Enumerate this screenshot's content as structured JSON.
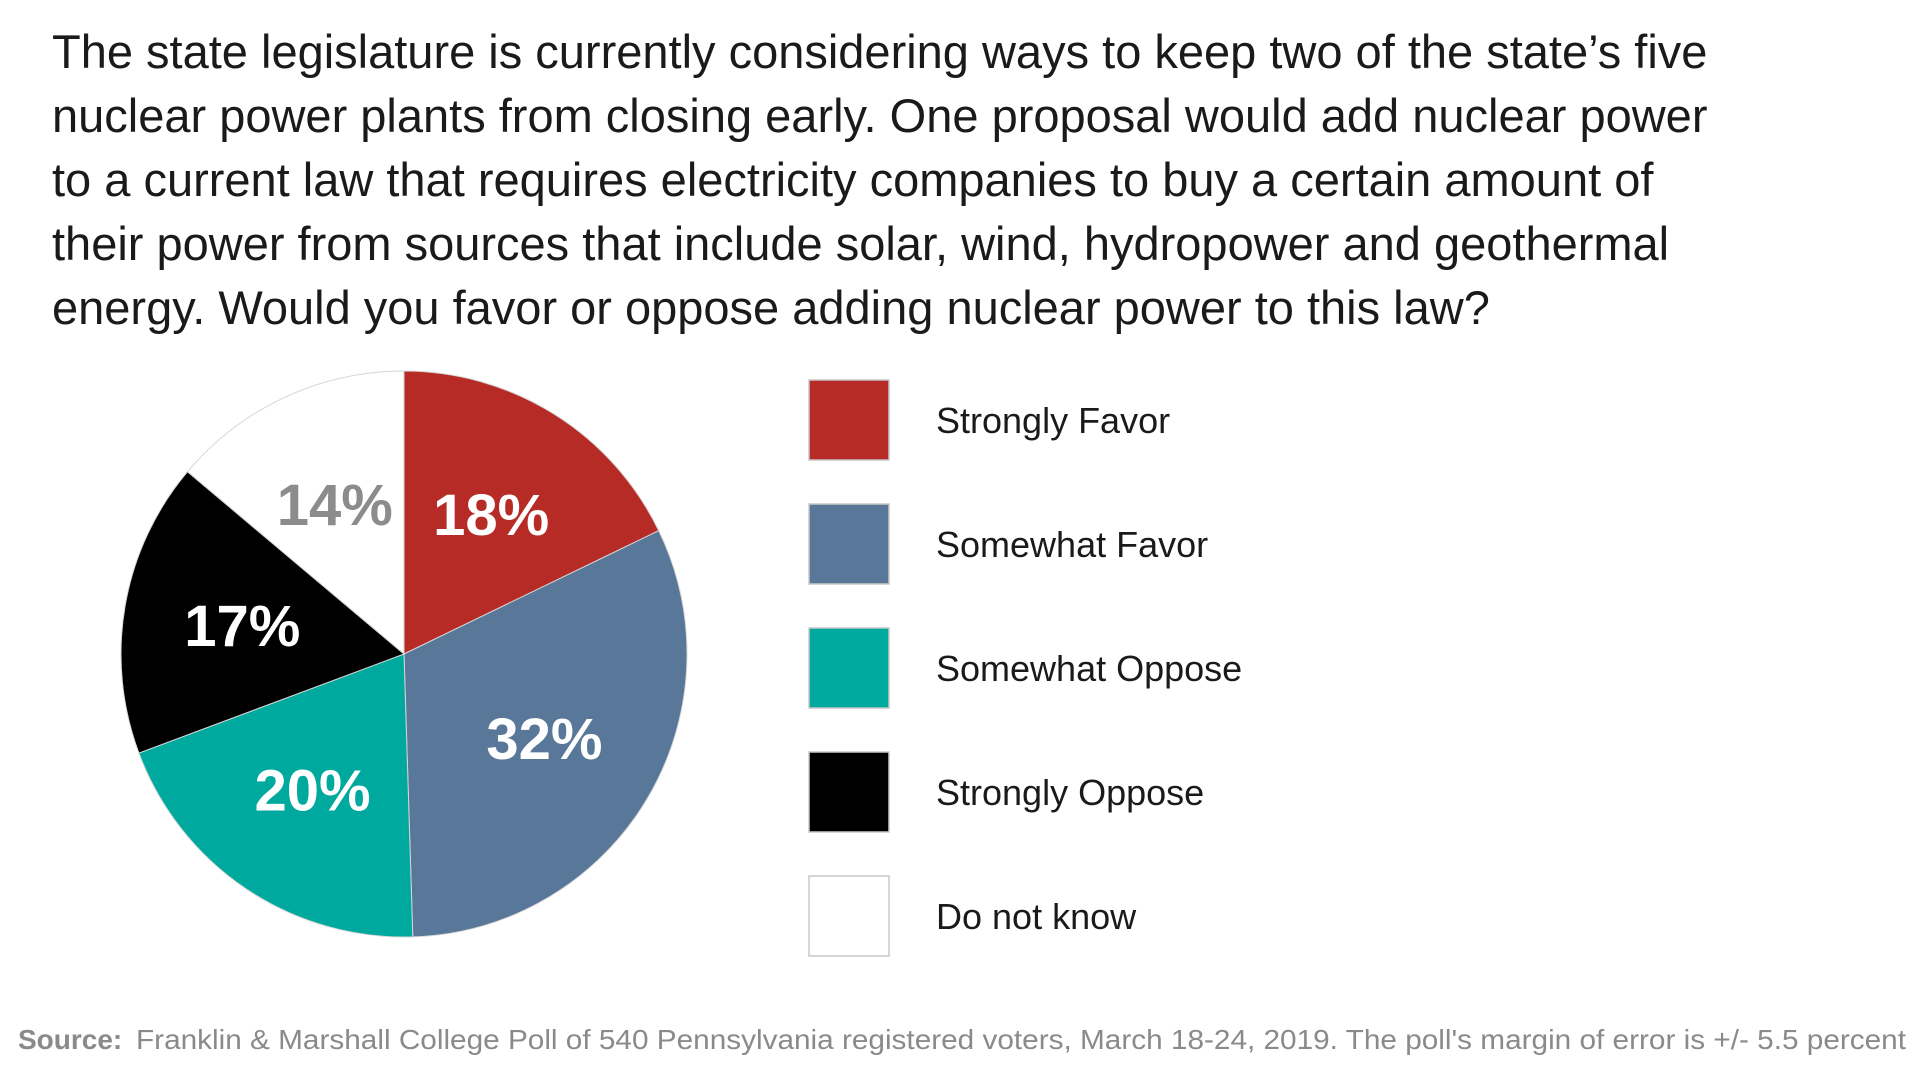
{
  "chart_data": {
    "type": "pie",
    "question": [
      "The state legislature is currently considering ways to keep two of the state’s five",
      "nuclear power plants from closing early. One proposal would add nuclear power",
      "to a current law that requires electricity companies to buy a certain amount of",
      "their power from sources that include solar, wind, hydropower and geothermal",
      "energy. Would you favor or oppose adding nuclear power to this law?"
    ],
    "slices": [
      {
        "name": "Strongly Favor",
        "value": 18,
        "label": "18%",
        "color": "#b72b27",
        "label_color": "#ffffff"
      },
      {
        "name": "Somewhat Favor",
        "value": 32,
        "label": "32%",
        "color": "#587799",
        "label_color": "#ffffff"
      },
      {
        "name": "Somewhat Oppose",
        "value": 20,
        "label": "20%",
        "color": "#00a99d",
        "label_color": "#ffffff"
      },
      {
        "name": "Strongly Oppose",
        "value": 17,
        "label": "17%",
        "color": "#000000",
        "label_color": "#ffffff"
      },
      {
        "name": "Do not know",
        "value": 14,
        "label": "14%",
        "color": "#ffffff",
        "label_color": "#8c8c8c"
      }
    ],
    "legend_placement": "right",
    "source_label": "Source:",
    "source_text": "Franklin & Marshall College Poll of 540 Pennsylvania registered voters, March 18-24, 2019. The poll's margin of error is +/- 5.5 percent"
  }
}
